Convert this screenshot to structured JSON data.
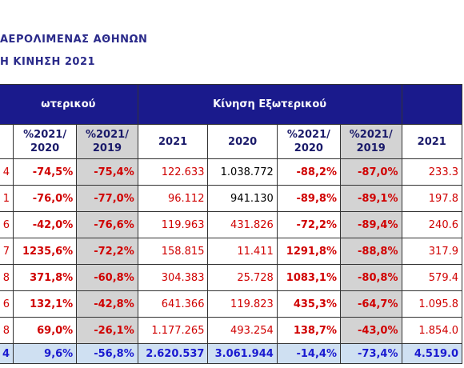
{
  "header": {
    "title": "ΑΕΡΟΛΙΜΕΝΑΣ ΑΘΗΝΩΝ",
    "subtitle": "Η ΚΙΝΗΣΗ 2021"
  },
  "table": {
    "groups": [
      "ωτερικού",
      "Κίνηση Εξωτερικού",
      ""
    ],
    "columns": [
      "",
      "%2021/\n2020",
      "%2021/\n2019",
      "2021",
      "2020",
      "%2021/\n2020",
      "%2021/\n2019",
      "2021"
    ],
    "rows": [
      [
        "4",
        "-74,5%",
        "-75,4%",
        "122.633",
        "1.038.772",
        "-88,2%",
        "-87,0%",
        "233.3"
      ],
      [
        "1",
        "-76,0%",
        "-77,0%",
        "96.112",
        "941.130",
        "-89,8%",
        "-89,1%",
        "197.8"
      ],
      [
        "6",
        "-42,0%",
        "-76,6%",
        "119.963",
        "431.826",
        "-72,2%",
        "-89,4%",
        "240.6"
      ],
      [
        "7",
        "1235,6%",
        "-72,2%",
        "158.815",
        "11.411",
        "1291,8%",
        "-88,8%",
        "317.9"
      ],
      [
        "8",
        "371,8%",
        "-60,8%",
        "304.383",
        "25.728",
        "1083,1%",
        "-80,8%",
        "579.4"
      ],
      [
        "6",
        "132,1%",
        "-42,8%",
        "641.366",
        "119.823",
        "435,3%",
        "-64,7%",
        "1.095.8"
      ],
      [
        "8",
        "69,0%",
        "-26,1%",
        "1.177.265",
        "493.254",
        "138,7%",
        "-43,0%",
        "1.854.0"
      ]
    ],
    "total": [
      "4",
      "9,6%",
      "-56,8%",
      "2.620.537",
      "3.061.944",
      "-14,4%",
      "-73,4%",
      "4.519.0"
    ]
  }
}
